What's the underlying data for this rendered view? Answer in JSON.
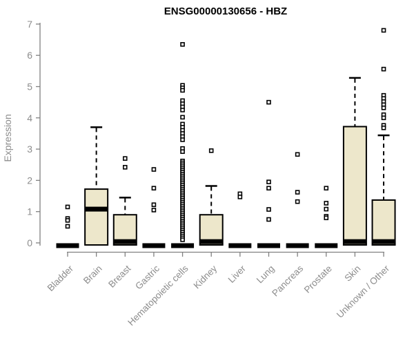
{
  "chart_data": {
    "type": "boxplot",
    "title": "ENSG00000130656 - HBZ",
    "ylabel": "Expression",
    "xlabel": "",
    "ylim": [
      0,
      7
    ],
    "yticks": [
      0,
      1,
      2,
      3,
      4,
      5,
      6,
      7
    ],
    "grid": false,
    "legend": "none",
    "categories": [
      "Bladder",
      "Brain",
      "Breast",
      "Gastric",
      "Hematopoietic cells",
      "Kidney",
      "Liver",
      "Lung",
      "Pancreas",
      "Prostate",
      "Skin",
      "Unknown / Other"
    ],
    "series": [
      {
        "category": "Bladder",
        "q1": 0,
        "median": 0,
        "q3": 0,
        "whisker_low": 0,
        "whisker_high": 0,
        "outliers": [
          1.15,
          0.78,
          0.72,
          0.53
        ]
      },
      {
        "category": "Brain",
        "q1": 0,
        "median": 1.08,
        "q3": 1.72,
        "whisker_low": 0,
        "whisker_high": 3.7,
        "outliers": []
      },
      {
        "category": "Breast",
        "q1": 0,
        "median": 0.04,
        "q3": 0.9,
        "whisker_low": 0,
        "whisker_high": 1.45,
        "outliers": [
          2.7,
          2.42
        ]
      },
      {
        "category": "Gastric",
        "q1": 0,
        "median": 0,
        "q3": 0,
        "whisker_low": 0,
        "whisker_high": 0,
        "outliers": [
          2.35,
          1.75,
          1.22,
          1.05
        ]
      },
      {
        "category": "Hematopoietic cells",
        "q1": 0,
        "median": 0,
        "q3": 0,
        "whisker_low": 0,
        "whisker_high": 0,
        "outliers": [
          6.35,
          5.04,
          4.96,
          4.88,
          4.55,
          4.45,
          4.35,
          4.25,
          4.02,
          3.8,
          3.7,
          3.6,
          3.5,
          3.4,
          3.3,
          3.02,
          2.92,
          2.62,
          2.56,
          2.5,
          2.44,
          2.38,
          2.32,
          2.26,
          2.2,
          2.14,
          2.08,
          2.02,
          1.96,
          1.9,
          1.84,
          1.78,
          1.72,
          1.66,
          1.6,
          1.54,
          1.48,
          1.42,
          1.36,
          1.3,
          1.24,
          1.18,
          1.12,
          1.06,
          1.0,
          0.94,
          0.88,
          0.82,
          0.76,
          0.7,
          0.64,
          0.58,
          0.52,
          0.46,
          0.4,
          0.34,
          0.28,
          0.22,
          0.16,
          0.1
        ]
      },
      {
        "category": "Kidney",
        "q1": 0,
        "median": 0.04,
        "q3": 0.9,
        "whisker_low": 0,
        "whisker_high": 1.82,
        "outliers": [
          2.95
        ]
      },
      {
        "category": "Liver",
        "q1": 0,
        "median": 0,
        "q3": 0,
        "whisker_low": 0,
        "whisker_high": 0,
        "outliers": [
          1.57,
          1.47
        ]
      },
      {
        "category": "Lung",
        "q1": 0,
        "median": 0,
        "q3": 0,
        "whisker_low": 0,
        "whisker_high": 0,
        "outliers": [
          4.5,
          1.95,
          1.75,
          1.07,
          0.75
        ]
      },
      {
        "category": "Pancreas",
        "q1": 0,
        "median": 0,
        "q3": 0,
        "whisker_low": 0,
        "whisker_high": 0,
        "outliers": [
          2.83,
          1.62,
          1.32
        ]
      },
      {
        "category": "Prostate",
        "q1": 0,
        "median": 0,
        "q3": 0,
        "whisker_low": 0,
        "whisker_high": 0,
        "outliers": [
          1.75,
          1.27,
          1.08,
          0.85,
          0.8
        ]
      },
      {
        "category": "Skin",
        "q1": 0,
        "median": 0.04,
        "q3": 3.72,
        "whisker_low": 0,
        "whisker_high": 5.28,
        "outliers": []
      },
      {
        "category": "Unknown / Other",
        "q1": 0,
        "median": 0.04,
        "q3": 1.37,
        "whisker_low": 0,
        "whisker_high": 3.44,
        "outliers": [
          6.8,
          5.56,
          4.72,
          4.62,
          4.52,
          4.42,
          4.32,
          4.1,
          4.0,
          3.76,
          3.68
        ]
      }
    ],
    "colors": {
      "box_fill": "#EDE7CB",
      "box_stroke": "#000000",
      "median": "#000000",
      "whisker": "#000000",
      "outlier_stroke": "#000000",
      "outlier_fill": "#FFFFFF",
      "axis_line": "#808080",
      "axis_text": "#8C8C8C",
      "title_text": "#000000",
      "background": "#FFFFFF"
    }
  }
}
